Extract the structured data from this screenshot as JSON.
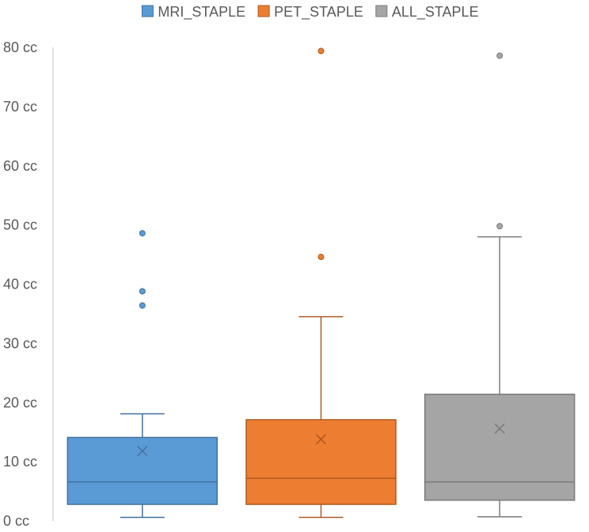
{
  "chart_data": {
    "type": "box",
    "title": "",
    "xlabel": "",
    "ylabel": "",
    "ylim": [
      0,
      80
    ],
    "y_ticks": [
      0,
      10,
      20,
      30,
      40,
      50,
      60,
      70,
      80
    ],
    "y_tick_labels": [
      "0 cc",
      "10 cc",
      "20 cc",
      "30 cc",
      "40 cc",
      "50 cc",
      "60 cc",
      "70 cc",
      "80 cc"
    ],
    "legend_position": "top",
    "grid": false,
    "series": [
      {
        "name": "MRI_STAPLE",
        "color": "#5B9BD5",
        "line_color": "#41719C",
        "min": 0.6,
        "q1": 2.8,
        "median": 6.6,
        "q3": 14.1,
        "max": 18.1,
        "mean": 11.8,
        "outliers": [
          36.4,
          38.8,
          48.6
        ]
      },
      {
        "name": "PET_STAPLE",
        "color": "#ED7D31",
        "line_color": "#AE5A21",
        "min": 0.6,
        "q1": 2.8,
        "median": 7.2,
        "q3": 17.1,
        "max": 34.5,
        "mean": 13.8,
        "outliers": [
          44.6,
          79.4
        ]
      },
      {
        "name": "ALL_STAPLE",
        "color": "#A5A5A5",
        "line_color": "#7B7B7B",
        "min": 0.7,
        "q1": 3.5,
        "median": 6.6,
        "q3": 21.4,
        "max": 48.0,
        "mean": 15.6,
        "outliers": [
          49.8,
          78.6
        ]
      }
    ]
  }
}
